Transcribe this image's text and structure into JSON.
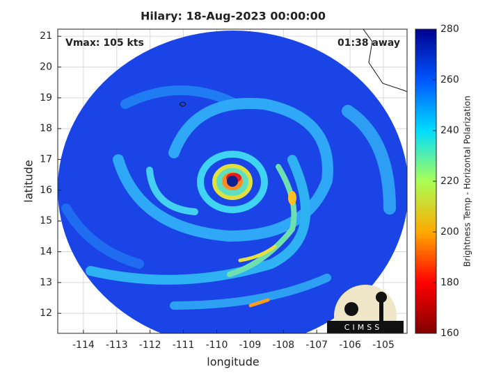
{
  "chart_data": {
    "type": "image",
    "title": "Hilary: 18-Aug-2023 00:00:00",
    "xlabel": "longitude",
    "ylabel": "latitude",
    "annotations": [
      "Vmax: 105 kts",
      "01:38 away"
    ],
    "logo": "CIMSS",
    "xlim": [
      -114.77,
      -104.29
    ],
    "xticks": [
      -114,
      -113,
      -112,
      -111,
      -110,
      -109,
      -108,
      -107,
      -106,
      -105
    ],
    "ylim": [
      11.35,
      21.23
    ],
    "yticks": [
      12,
      13,
      14,
      15,
      16,
      17,
      18,
      19,
      20,
      21
    ],
    "grid": true,
    "colorbar": {
      "label": "Brightness Temp - Horizontal Polarization",
      "lim": [
        160,
        280
      ],
      "ticks": [
        160,
        180,
        200,
        220,
        240,
        260,
        280
      ],
      "colormap": [
        "#800000",
        "#ff0000",
        "#ffaa00",
        "#aaff55",
        "#00ddff",
        "#0055ff",
        "#00008f"
      ]
    }
  }
}
